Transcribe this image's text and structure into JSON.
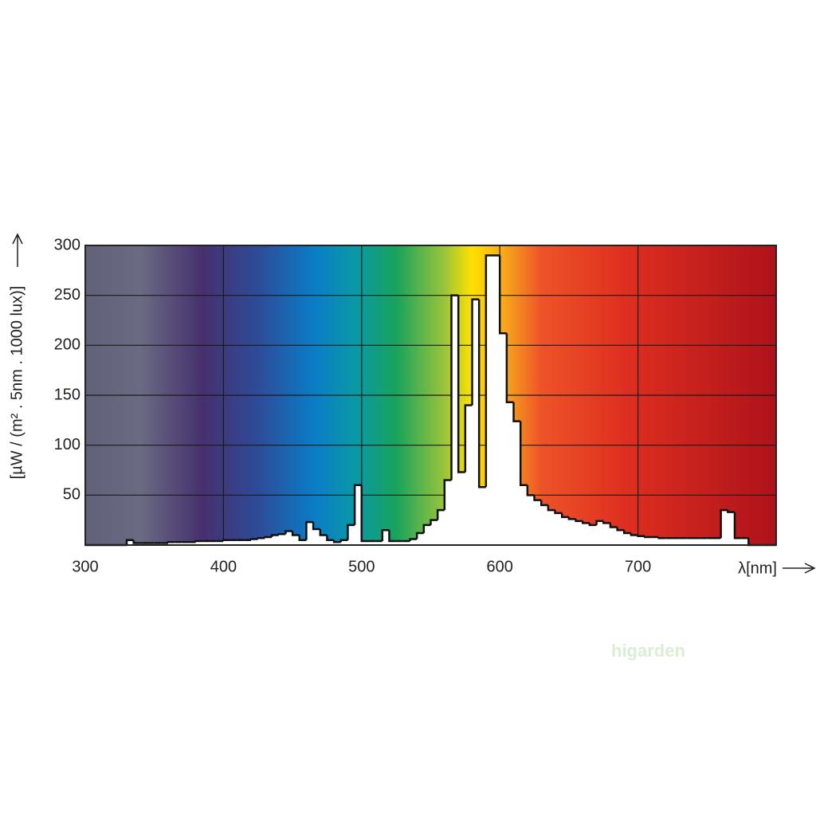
{
  "chart_data": {
    "type": "histogram",
    "y_label": "[µW / (m² . 5nm . 1000 lux)]",
    "x_label": "λ[nm]",
    "watermark": "higarden",
    "bins": [
      300,
      305,
      310,
      315,
      320,
      325,
      330,
      335,
      340,
      345,
      350,
      355,
      360,
      365,
      370,
      375,
      380,
      385,
      390,
      395,
      400,
      405,
      410,
      415,
      420,
      425,
      430,
      435,
      440,
      445,
      450,
      455,
      460,
      465,
      470,
      475,
      480,
      485,
      490,
      495,
      500,
      505,
      510,
      515,
      520,
      525,
      530,
      535,
      540,
      545,
      550,
      555,
      560,
      565,
      570,
      575,
      580,
      585,
      590,
      595,
      600,
      605,
      610,
      615,
      620,
      625,
      630,
      635,
      640,
      645,
      650,
      655,
      660,
      665,
      670,
      675,
      680,
      685,
      690,
      695,
      700,
      705,
      710,
      715,
      720,
      725,
      730,
      735,
      740,
      745,
      750,
      755,
      760,
      765,
      770,
      775,
      780,
      785,
      790,
      795,
      800
    ],
    "values": [
      0,
      0,
      0,
      0,
      0,
      0,
      5,
      2,
      2,
      2,
      2,
      2,
      3,
      3,
      3,
      3,
      4,
      4,
      4,
      4,
      5,
      5,
      5,
      5,
      6,
      7,
      8,
      10,
      11,
      14,
      10,
      5,
      23,
      16,
      10,
      5,
      3,
      5,
      20,
      60,
      4,
      4,
      4,
      15,
      4,
      4,
      4,
      6,
      12,
      20,
      25,
      35,
      65,
      250,
      73,
      140,
      246,
      58,
      290,
      290,
      212,
      143,
      124,
      60,
      50,
      45,
      40,
      35,
      32,
      28,
      26,
      24,
      22,
      20,
      24,
      22,
      18,
      15,
      12,
      10,
      9,
      8,
      8,
      7,
      7,
      7,
      7,
      7,
      7,
      7,
      7,
      7,
      35,
      33,
      7,
      7,
      0,
      0,
      0,
      0
    ],
    "color": "#ffffff",
    "xlim": [
      300,
      800
    ],
    "xticks": [
      300,
      400,
      500,
      600,
      700
    ],
    "ylim": [
      0,
      300
    ],
    "yticks": [
      50,
      100,
      150,
      200,
      250,
      300
    ],
    "grid": true
  }
}
